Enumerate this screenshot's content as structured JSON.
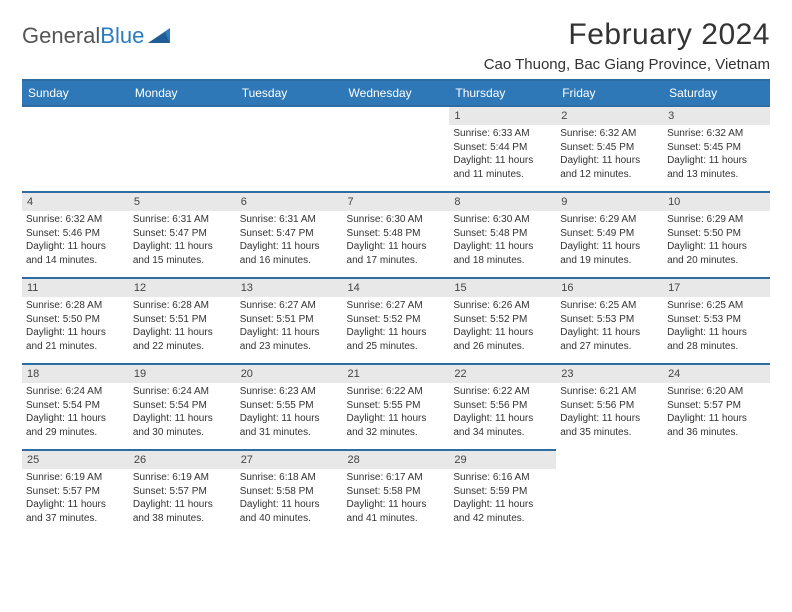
{
  "logo": {
    "text1": "General",
    "text2": "Blue"
  },
  "title": "February 2024",
  "location": "Cao Thuong, Bac Giang Province, Vietnam",
  "colors": {
    "header_bg": "#2e78b8",
    "header_border": "#2e6da4",
    "daynum_bg": "#e8e8e8",
    "text": "#333333",
    "logo_gray": "#555555",
    "logo_blue": "#2b7bbf"
  },
  "typography": {
    "title_fontsize": 30,
    "location_fontsize": 15,
    "header_fontsize": 12,
    "cell_fontsize": 10
  },
  "dayHeaders": [
    "Sunday",
    "Monday",
    "Tuesday",
    "Wednesday",
    "Thursday",
    "Friday",
    "Saturday"
  ],
  "weeks": [
    [
      null,
      null,
      null,
      null,
      {
        "n": "1",
        "sr": "6:33 AM",
        "ss": "5:44 PM",
        "dl": "11 hours and 11 minutes."
      },
      {
        "n": "2",
        "sr": "6:32 AM",
        "ss": "5:45 PM",
        "dl": "11 hours and 12 minutes."
      },
      {
        "n": "3",
        "sr": "6:32 AM",
        "ss": "5:45 PM",
        "dl": "11 hours and 13 minutes."
      }
    ],
    [
      {
        "n": "4",
        "sr": "6:32 AM",
        "ss": "5:46 PM",
        "dl": "11 hours and 14 minutes."
      },
      {
        "n": "5",
        "sr": "6:31 AM",
        "ss": "5:47 PM",
        "dl": "11 hours and 15 minutes."
      },
      {
        "n": "6",
        "sr": "6:31 AM",
        "ss": "5:47 PM",
        "dl": "11 hours and 16 minutes."
      },
      {
        "n": "7",
        "sr": "6:30 AM",
        "ss": "5:48 PM",
        "dl": "11 hours and 17 minutes."
      },
      {
        "n": "8",
        "sr": "6:30 AM",
        "ss": "5:48 PM",
        "dl": "11 hours and 18 minutes."
      },
      {
        "n": "9",
        "sr": "6:29 AM",
        "ss": "5:49 PM",
        "dl": "11 hours and 19 minutes."
      },
      {
        "n": "10",
        "sr": "6:29 AM",
        "ss": "5:50 PM",
        "dl": "11 hours and 20 minutes."
      }
    ],
    [
      {
        "n": "11",
        "sr": "6:28 AM",
        "ss": "5:50 PM",
        "dl": "11 hours and 21 minutes."
      },
      {
        "n": "12",
        "sr": "6:28 AM",
        "ss": "5:51 PM",
        "dl": "11 hours and 22 minutes."
      },
      {
        "n": "13",
        "sr": "6:27 AM",
        "ss": "5:51 PM",
        "dl": "11 hours and 23 minutes."
      },
      {
        "n": "14",
        "sr": "6:27 AM",
        "ss": "5:52 PM",
        "dl": "11 hours and 25 minutes."
      },
      {
        "n": "15",
        "sr": "6:26 AM",
        "ss": "5:52 PM",
        "dl": "11 hours and 26 minutes."
      },
      {
        "n": "16",
        "sr": "6:25 AM",
        "ss": "5:53 PM",
        "dl": "11 hours and 27 minutes."
      },
      {
        "n": "17",
        "sr": "6:25 AM",
        "ss": "5:53 PM",
        "dl": "11 hours and 28 minutes."
      }
    ],
    [
      {
        "n": "18",
        "sr": "6:24 AM",
        "ss": "5:54 PM",
        "dl": "11 hours and 29 minutes."
      },
      {
        "n": "19",
        "sr": "6:24 AM",
        "ss": "5:54 PM",
        "dl": "11 hours and 30 minutes."
      },
      {
        "n": "20",
        "sr": "6:23 AM",
        "ss": "5:55 PM",
        "dl": "11 hours and 31 minutes."
      },
      {
        "n": "21",
        "sr": "6:22 AM",
        "ss": "5:55 PM",
        "dl": "11 hours and 32 minutes."
      },
      {
        "n": "22",
        "sr": "6:22 AM",
        "ss": "5:56 PM",
        "dl": "11 hours and 34 minutes."
      },
      {
        "n": "23",
        "sr": "6:21 AM",
        "ss": "5:56 PM",
        "dl": "11 hours and 35 minutes."
      },
      {
        "n": "24",
        "sr": "6:20 AM",
        "ss": "5:57 PM",
        "dl": "11 hours and 36 minutes."
      }
    ],
    [
      {
        "n": "25",
        "sr": "6:19 AM",
        "ss": "5:57 PM",
        "dl": "11 hours and 37 minutes."
      },
      {
        "n": "26",
        "sr": "6:19 AM",
        "ss": "5:57 PM",
        "dl": "11 hours and 38 minutes."
      },
      {
        "n": "27",
        "sr": "6:18 AM",
        "ss": "5:58 PM",
        "dl": "11 hours and 40 minutes."
      },
      {
        "n": "28",
        "sr": "6:17 AM",
        "ss": "5:58 PM",
        "dl": "11 hours and 41 minutes."
      },
      {
        "n": "29",
        "sr": "6:16 AM",
        "ss": "5:59 PM",
        "dl": "11 hours and 42 minutes."
      },
      null,
      null
    ]
  ],
  "labels": {
    "sunrise": "Sunrise:",
    "sunset": "Sunset:",
    "daylight": "Daylight:"
  }
}
